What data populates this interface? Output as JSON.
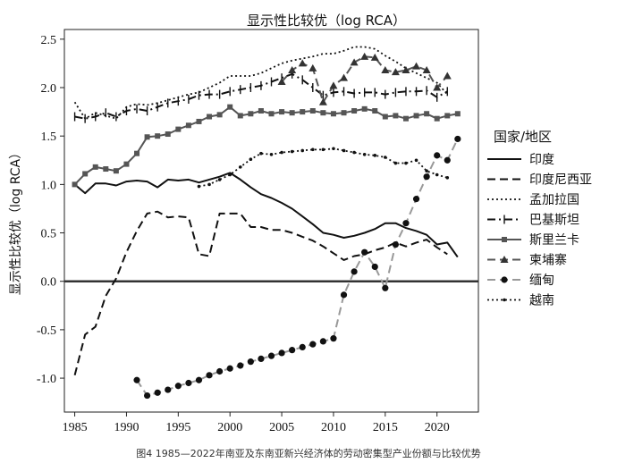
{
  "chart_data": {
    "type": "line",
    "title": "显示性比较优（log RCA）",
    "xlabel": "",
    "ylabel": "显示性比较优（log RCA）",
    "caption": "图4 1985—2022年南亚及东南亚新兴经济体的劳动密集型产业份额与比较优势",
    "xlim": [
      1984,
      2024
    ],
    "ylim": [
      -1.35,
      2.6
    ],
    "xticks": [
      1985,
      1990,
      1995,
      2000,
      2005,
      2010,
      2015,
      2020
    ],
    "yticks": [
      -1.0,
      -0.5,
      0.0,
      0.5,
      1.0,
      1.5,
      2.0,
      2.5
    ],
    "ytick_labels": [
      "-1.0",
      "-0.5",
      "0.0",
      "0.5",
      "1.0",
      "1.5",
      "2.0",
      "2.5"
    ],
    "grid": false,
    "reference_line_y": 0,
    "legend": {
      "title": "国家/地区",
      "position": "right"
    },
    "series": [
      {
        "name": "印度",
        "style": "solid",
        "color": "#111111",
        "marker": "none",
        "x": [
          1985,
          1986,
          1987,
          1988,
          1989,
          1990,
          1991,
          1992,
          1993,
          1994,
          1995,
          1996,
          1997,
          1998,
          1999,
          2000,
          2001,
          2002,
          2003,
          2004,
          2005,
          2006,
          2007,
          2008,
          2009,
          2010,
          2011,
          2012,
          2013,
          2014,
          2015,
          2016,
          2017,
          2018,
          2019,
          2020,
          2021,
          2022
        ],
        "y": [
          1.0,
          0.91,
          1.01,
          1.01,
          0.99,
          1.03,
          1.04,
          1.03,
          0.97,
          1.05,
          1.04,
          1.05,
          1.02,
          1.05,
          1.08,
          1.12,
          1.05,
          0.97,
          0.9,
          0.86,
          0.81,
          0.75,
          0.67,
          0.59,
          0.5,
          0.48,
          0.45,
          0.47,
          0.5,
          0.54,
          0.6,
          0.6,
          0.55,
          0.52,
          0.48,
          0.38,
          0.4,
          0.25
        ]
      },
      {
        "name": "印度尼西亚",
        "style": "dashed",
        "color": "#111111",
        "marker": "none",
        "x": [
          1985,
          1986,
          1987,
          1988,
          1989,
          1990,
          1991,
          1992,
          1993,
          1994,
          1995,
          1996,
          1997,
          1998,
          1999,
          2000,
          2001,
          2002,
          2003,
          2004,
          2005,
          2006,
          2007,
          2008,
          2009,
          2010,
          2011,
          2012,
          2013,
          2014,
          2015,
          2016,
          2017,
          2018,
          2019,
          2020,
          2021
        ],
        "y": [
          -0.97,
          -0.55,
          -0.47,
          -0.15,
          0.03,
          0.3,
          0.52,
          0.7,
          0.72,
          0.66,
          0.67,
          0.66,
          0.28,
          0.26,
          0.7,
          0.7,
          0.7,
          0.56,
          0.56,
          0.53,
          0.53,
          0.5,
          0.46,
          0.42,
          0.36,
          0.29,
          0.22,
          0.26,
          0.28,
          0.32,
          0.35,
          0.4,
          0.36,
          0.4,
          0.43,
          0.35,
          0.28
        ]
      },
      {
        "name": "孟加拉国",
        "style": "dotted",
        "color": "#111111",
        "marker": "none",
        "x": [
          1985,
          1986,
          1987,
          1988,
          1989,
          1990,
          1991,
          1992,
          1993,
          1994,
          1995,
          1996,
          1997,
          1998,
          1999,
          2000,
          2001,
          2002,
          2003,
          2004,
          2005,
          2006,
          2007,
          2008,
          2009,
          2010,
          2011,
          2012,
          2013,
          2014,
          2015,
          2016,
          2017,
          2018,
          2019,
          2020,
          2021
        ],
        "y": [
          1.85,
          1.68,
          1.74,
          1.71,
          1.68,
          1.8,
          1.83,
          1.82,
          1.84,
          1.87,
          1.9,
          1.93,
          1.95,
          2.0,
          2.05,
          2.12,
          2.12,
          2.12,
          2.15,
          2.2,
          2.25,
          2.28,
          2.3,
          2.32,
          2.35,
          2.35,
          2.38,
          2.42,
          2.42,
          2.4,
          2.33,
          2.27,
          2.2,
          2.15,
          2.1,
          2.05,
          1.93
        ]
      },
      {
        "name": "巴基斯坦",
        "style": "dashdot",
        "color": "#111111",
        "marker": "tick",
        "x": [
          1985,
          1986,
          1987,
          1988,
          1989,
          1990,
          1991,
          1992,
          1993,
          1994,
          1995,
          1996,
          1997,
          1998,
          1999,
          2000,
          2001,
          2002,
          2003,
          2004,
          2005,
          2006,
          2007,
          2008,
          2009,
          2010,
          2011,
          2012,
          2013,
          2014,
          2015,
          2016,
          2017,
          2018,
          2019,
          2020,
          2021
        ],
        "y": [
          1.7,
          1.68,
          1.7,
          1.74,
          1.7,
          1.76,
          1.78,
          1.76,
          1.8,
          1.84,
          1.86,
          1.88,
          1.92,
          1.93,
          1.93,
          1.96,
          1.98,
          2.0,
          2.02,
          2.06,
          2.1,
          2.14,
          2.08,
          2.0,
          1.92,
          1.95,
          1.96,
          1.94,
          1.95,
          1.95,
          1.93,
          1.95,
          1.96,
          1.96,
          1.97,
          1.9,
          1.96
        ]
      },
      {
        "name": "斯里兰卡",
        "style": "solid",
        "color": "#555555",
        "marker": "square",
        "x": [
          1985,
          1986,
          1987,
          1988,
          1989,
          1990,
          1991,
          1992,
          1993,
          1994,
          1995,
          1996,
          1997,
          1998,
          1999,
          2000,
          2001,
          2002,
          2003,
          2004,
          2005,
          2006,
          2007,
          2008,
          2009,
          2010,
          2011,
          2012,
          2013,
          2014,
          2015,
          2016,
          2017,
          2018,
          2019,
          2020,
          2021,
          2022
        ],
        "y": [
          1.0,
          1.11,
          1.18,
          1.16,
          1.14,
          1.21,
          1.32,
          1.49,
          1.5,
          1.52,
          1.57,
          1.61,
          1.65,
          1.7,
          1.72,
          1.8,
          1.71,
          1.73,
          1.76,
          1.73,
          1.75,
          1.74,
          1.75,
          1.76,
          1.74,
          1.73,
          1.74,
          1.76,
          1.78,
          1.76,
          1.7,
          1.71,
          1.68,
          1.71,
          1.73,
          1.68,
          1.71,
          1.73
        ]
      },
      {
        "name": "柬埔寨",
        "style": "dashed",
        "color": "#555555",
        "marker": "triangle",
        "x": [
          2005,
          2006,
          2007,
          2008,
          2009,
          2010,
          2011,
          2012,
          2013,
          2014,
          2015,
          2016,
          2017,
          2018,
          2019,
          2020,
          2021
        ],
        "y": [
          2.06,
          2.18,
          2.25,
          2.2,
          1.85,
          2.02,
          2.1,
          2.26,
          2.32,
          2.31,
          2.18,
          2.16,
          2.18,
          2.22,
          2.18,
          2.0,
          2.12
        ]
      },
      {
        "name": "缅甸",
        "style": "dashed",
        "color": "#999999",
        "marker": "circle",
        "x": [
          1991,
          1992,
          1993,
          1994,
          1995,
          1996,
          1997,
          1998,
          1999,
          2000,
          2001,
          2002,
          2003,
          2004,
          2005,
          2006,
          2007,
          2008,
          2009,
          2010,
          2011,
          2012,
          2013,
          2014,
          2015,
          2016,
          2017,
          2018,
          2019,
          2020,
          2021,
          2022
        ],
        "y": [
          -1.02,
          -1.18,
          -1.15,
          -1.12,
          -1.08,
          -1.05,
          -1.02,
          -0.97,
          -0.93,
          -0.9,
          -0.87,
          -0.83,
          -0.8,
          -0.77,
          -0.74,
          -0.71,
          -0.68,
          -0.65,
          -0.62,
          -0.59,
          -0.14,
          0.1,
          0.3,
          0.15,
          -0.07,
          0.38,
          0.6,
          0.85,
          1.08,
          1.3,
          1.25,
          1.47
        ]
      },
      {
        "name": "越南",
        "style": "dotted",
        "color": "#111111",
        "marker": "dot",
        "x": [
          1997,
          1998,
          1999,
          2000,
          2001,
          2002,
          2003,
          2004,
          2005,
          2006,
          2007,
          2008,
          2009,
          2010,
          2011,
          2012,
          2013,
          2014,
          2015,
          2016,
          2017,
          2018,
          2019,
          2020,
          2021
        ],
        "y": [
          0.98,
          1.0,
          1.05,
          1.1,
          1.18,
          1.26,
          1.32,
          1.31,
          1.33,
          1.34,
          1.35,
          1.36,
          1.36,
          1.37,
          1.35,
          1.33,
          1.31,
          1.3,
          1.28,
          1.22,
          1.22,
          1.25,
          1.14,
          1.1,
          1.07
        ]
      }
    ]
  }
}
